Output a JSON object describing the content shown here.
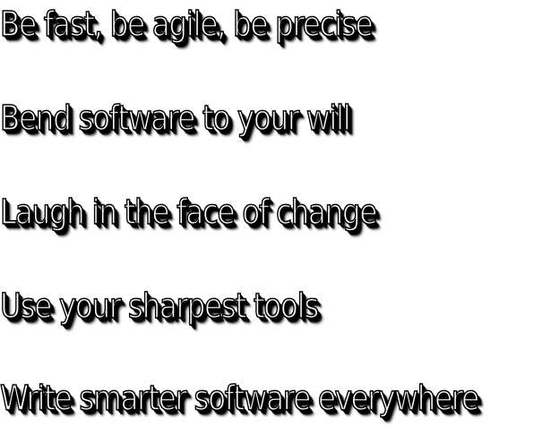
{
  "taglines": [
    "Be fast, be agile, be precise",
    "Bend software to your will",
    "Laugh in the face of change",
    "Use your sharpest tools",
    "Write smarter software everywhere"
  ],
  "colors": {
    "text_fill": "#ffffff",
    "text_outline": "#000000",
    "shadow": "#000000",
    "background": "#ffffff"
  }
}
